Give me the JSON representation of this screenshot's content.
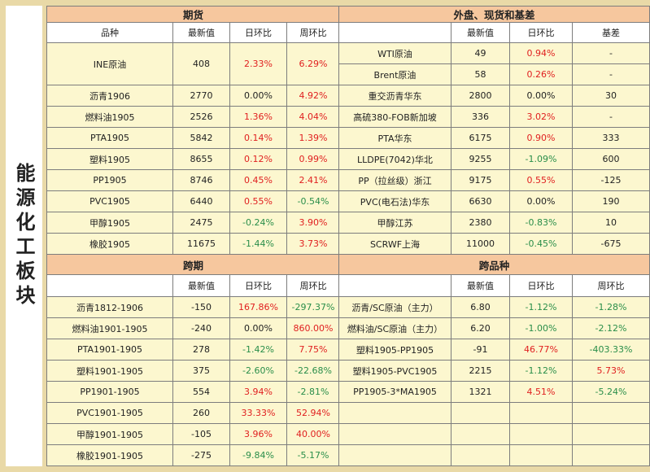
{
  "sidebar": {
    "title": "能源化工板块"
  },
  "futures": {
    "title": "期货",
    "headers": [
      "品种",
      "最新值",
      "日环比",
      "周环比"
    ],
    "rows": [
      {
        "name": "INE原油",
        "value": "408",
        "day": "2.33%",
        "week": "6.29%"
      },
      {
        "name": "沥青1906",
        "value": "2770",
        "day": "0.00%",
        "week": "4.92%"
      },
      {
        "name": "燃料油1905",
        "value": "2526",
        "day": "1.36%",
        "week": "4.04%"
      },
      {
        "name": "PTA1905",
        "value": "5842",
        "day": "0.14%",
        "week": "1.39%"
      },
      {
        "name": "塑料1905",
        "value": "8655",
        "day": "0.12%",
        "week": "0.99%"
      },
      {
        "name": "PP1905",
        "value": "8746",
        "day": "0.45%",
        "week": "2.41%"
      },
      {
        "name": "PVC1905",
        "value": "6440",
        "day": "0.55%",
        "week": "-0.54%"
      },
      {
        "name": "甲醇1905",
        "value": "2475",
        "day": "-0.24%",
        "week": "3.90%"
      },
      {
        "name": "橡胶1905",
        "value": "11675",
        "day": "-1.44%",
        "week": "3.73%"
      }
    ]
  },
  "spot": {
    "title": "外盘、现货和基差",
    "headers": [
      "",
      "最新值",
      "日环比",
      "基差"
    ],
    "rows": [
      {
        "name": "WTI原油",
        "value": "49",
        "day": "0.94%",
        "basis": "-"
      },
      {
        "name": "Brent原油",
        "value": "58",
        "day": "0.26%",
        "basis": "-"
      },
      {
        "name": "重交沥青华东",
        "value": "2800",
        "day": "0.00%",
        "basis": "30"
      },
      {
        "name": "高硫380-FOB新加坡",
        "value": "336",
        "day": "3.02%",
        "basis": "-"
      },
      {
        "name": "PTA华东",
        "value": "6175",
        "day": "0.90%",
        "basis": "333"
      },
      {
        "name": "LLDPE(7042)华北",
        "value": "9255",
        "day": "-1.09%",
        "basis": "600"
      },
      {
        "name": "PP（拉丝级）浙江",
        "value": "9175",
        "day": "0.55%",
        "basis": "-125"
      },
      {
        "name": "PVC(电石法)华东",
        "value": "6630",
        "day": "0.00%",
        "basis": "190"
      },
      {
        "name": "甲醇江苏",
        "value": "2380",
        "day": "-0.83%",
        "basis": "10"
      },
      {
        "name": "SCRWF上海",
        "value": "11000",
        "day": "-0.45%",
        "basis": "-675"
      }
    ]
  },
  "spread": {
    "title": "跨期",
    "headers": [
      "",
      "最新值",
      "日环比",
      "周环比"
    ],
    "rows": [
      {
        "name": "沥青1812-1906",
        "value": "-150",
        "day": "167.86%",
        "week": "-297.37%"
      },
      {
        "name": "燃料油1901-1905",
        "value": "-240",
        "day": "0.00%",
        "week": "860.00%"
      },
      {
        "name": "PTA1901-1905",
        "value": "278",
        "day": "-1.42%",
        "week": "7.75%"
      },
      {
        "name": "塑料1901-1905",
        "value": "375",
        "day": "-2.60%",
        "week": "-22.68%"
      },
      {
        "name": "PP1901-1905",
        "value": "554",
        "day": "3.94%",
        "week": "-2.81%"
      },
      {
        "name": "PVC1901-1905",
        "value": "260",
        "day": "33.33%",
        "week": "52.94%"
      },
      {
        "name": "甲醇1901-1905",
        "value": "-105",
        "day": "3.96%",
        "week": "40.00%"
      },
      {
        "name": "橡胶1901-1905",
        "value": "-275",
        "day": "-9.84%",
        "week": "-5.17%"
      }
    ]
  },
  "cross": {
    "title": "跨品种",
    "headers": [
      "",
      "最新值",
      "日环比",
      "周环比"
    ],
    "rows": [
      {
        "name": "沥青/SC原油（主力）",
        "value": "6.80",
        "day": "-1.12%",
        "week": "-1.28%"
      },
      {
        "name": "燃料油/SC原油（主力）",
        "value": "6.20",
        "day": "-1.00%",
        "week": "-2.12%"
      },
      {
        "name": "塑料1905-PP1905",
        "value": "-91",
        "day": "46.77%",
        "week": "-403.33%"
      },
      {
        "name": "塑料1905-PVC1905",
        "value": "2215",
        "day": "-1.12%",
        "week": "5.73%"
      },
      {
        "name": "PP1905-3*MA1905",
        "value": "1321",
        "day": "4.51%",
        "week": "-5.24%"
      }
    ]
  },
  "colors": {
    "up": "#e02020",
    "down": "#2a8e4a",
    "neutral": "#222222",
    "section_header": "#f6c79e",
    "cell": "#fcf7cf",
    "frame": "#e9d9a7"
  }
}
